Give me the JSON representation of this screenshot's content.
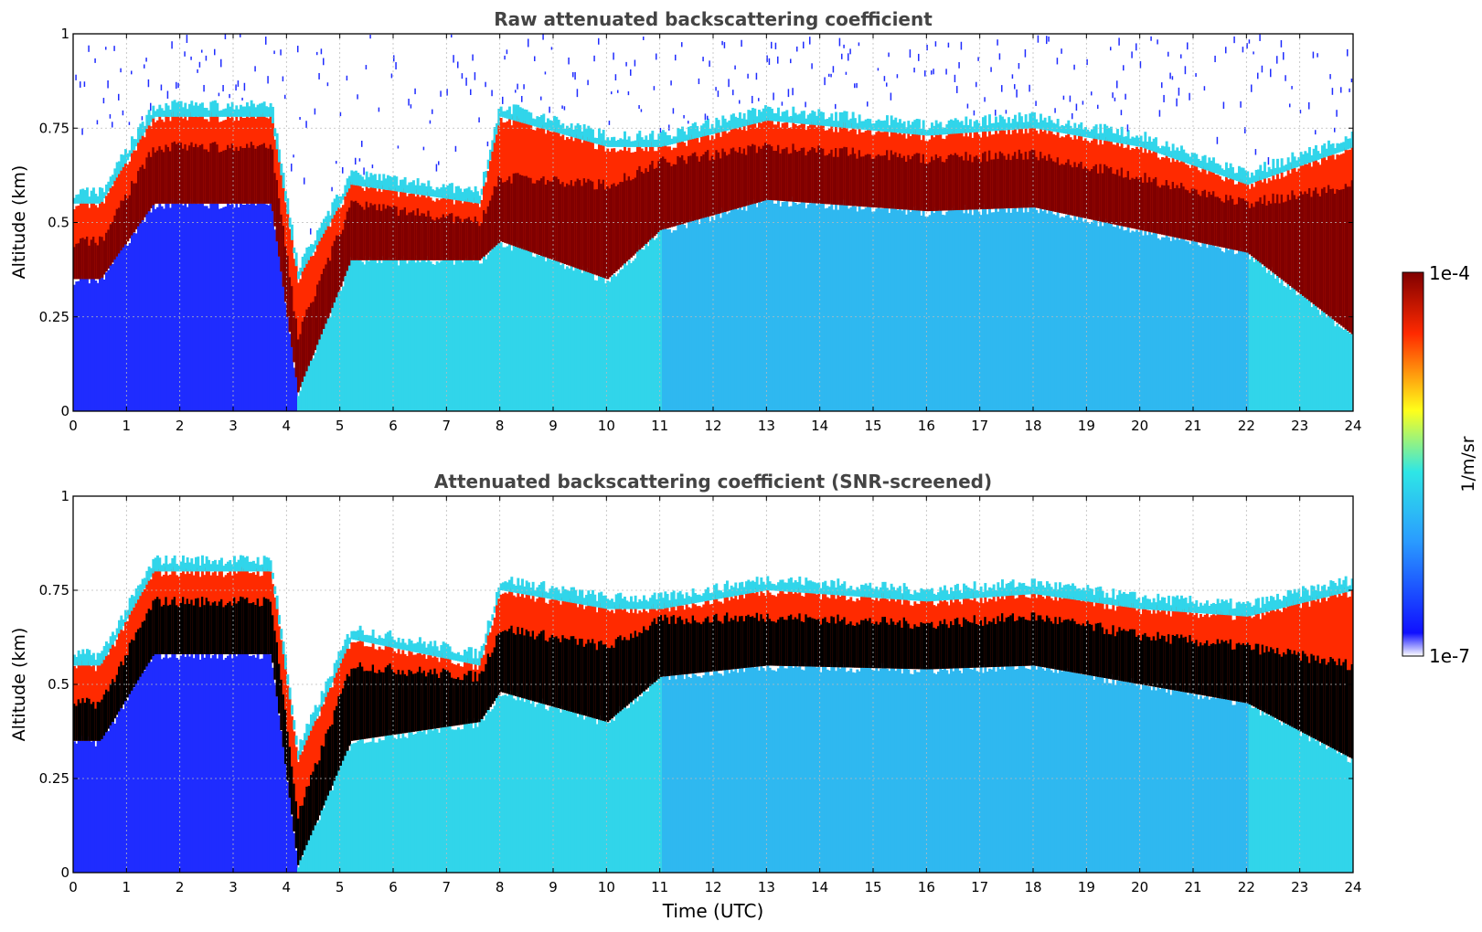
{
  "chart_data": [
    {
      "type": "heatmap",
      "title": "Raw attenuated backscattering coefficient",
      "xlabel": "",
      "ylabel": "Altitude (km)",
      "xlim": [
        0,
        24
      ],
      "ylim": [
        0,
        1
      ],
      "x_ticks": [
        "0",
        "1",
        "2",
        "3",
        "4",
        "5",
        "6",
        "7",
        "8",
        "9",
        "10",
        "11",
        "12",
        "13",
        "14",
        "15",
        "16",
        "17",
        "18",
        "19",
        "20",
        "21",
        "22",
        "23",
        "24"
      ],
      "y_ticks": [
        "0",
        "0.25",
        "0.5",
        "0.75",
        "1"
      ],
      "grid": true,
      "layer_top_km": [
        [
          0,
          0.55
        ],
        [
          0.5,
          0.55
        ],
        [
          1.5,
          0.78
        ],
        [
          3.7,
          0.78
        ],
        [
          4.2,
          0.35
        ],
        [
          5.2,
          0.6
        ],
        [
          7.6,
          0.55
        ],
        [
          8,
          0.78
        ],
        [
          10,
          0.7
        ],
        [
          11,
          0.7
        ],
        [
          13,
          0.77
        ],
        [
          16,
          0.73
        ],
        [
          18,
          0.75
        ],
        [
          20,
          0.7
        ],
        [
          22,
          0.6
        ],
        [
          24,
          0.7
        ]
      ],
      "core_base_km": [
        [
          0,
          0.35
        ],
        [
          0.5,
          0.35
        ],
        [
          1.5,
          0.55
        ],
        [
          3.7,
          0.55
        ],
        [
          4.2,
          0.05
        ],
        [
          5.2,
          0.4
        ],
        [
          7.6,
          0.4
        ],
        [
          8,
          0.45
        ],
        [
          10,
          0.35
        ],
        [
          11,
          0.48
        ],
        [
          13,
          0.56
        ],
        [
          16,
          0.53
        ],
        [
          18,
          0.54
        ],
        [
          20,
          0.48
        ],
        [
          22,
          0.42
        ],
        [
          24,
          0.2
        ]
      ],
      "core_top_km": [
        [
          0,
          0.45
        ],
        [
          0.5,
          0.45
        ],
        [
          1.5,
          0.7
        ],
        [
          3.7,
          0.7
        ],
        [
          4.2,
          0.2
        ],
        [
          5.2,
          0.55
        ],
        [
          7.6,
          0.5
        ],
        [
          8,
          0.62
        ],
        [
          10,
          0.6
        ],
        [
          11,
          0.66
        ],
        [
          13,
          0.7
        ],
        [
          16,
          0.67
        ],
        [
          18,
          0.68
        ],
        [
          20,
          0.62
        ],
        [
          22,
          0.55
        ],
        [
          24,
          0.6
        ]
      ]
    },
    {
      "type": "heatmap",
      "title": "Attenuated backscattering coefficient (SNR-screened)",
      "xlabel": "Time (UTC)",
      "ylabel": "Altitude (km)",
      "xlim": [
        0,
        24
      ],
      "ylim": [
        0,
        1
      ],
      "x_ticks": [
        "0",
        "1",
        "2",
        "3",
        "4",
        "5",
        "6",
        "7",
        "8",
        "9",
        "10",
        "11",
        "12",
        "13",
        "14",
        "15",
        "16",
        "17",
        "18",
        "19",
        "20",
        "21",
        "22",
        "23",
        "24"
      ],
      "y_ticks": [
        "0",
        "0.25",
        "0.5",
        "0.75",
        "1"
      ],
      "grid": true,
      "layer_top_km": [
        [
          0,
          0.55
        ],
        [
          0.5,
          0.55
        ],
        [
          1.5,
          0.8
        ],
        [
          3.7,
          0.8
        ],
        [
          4.2,
          0.3
        ],
        [
          5.2,
          0.62
        ],
        [
          7.6,
          0.55
        ],
        [
          8,
          0.75
        ],
        [
          10,
          0.7
        ],
        [
          11,
          0.7
        ],
        [
          13,
          0.75
        ],
        [
          16,
          0.72
        ],
        [
          18,
          0.74
        ],
        [
          20,
          0.7
        ],
        [
          22,
          0.68
        ],
        [
          24,
          0.75
        ]
      ],
      "core_base_km": [
        [
          0,
          0.35
        ],
        [
          0.5,
          0.35
        ],
        [
          1.5,
          0.58
        ],
        [
          3.7,
          0.58
        ],
        [
          4.2,
          0.02
        ],
        [
          5.2,
          0.35
        ],
        [
          7.6,
          0.4
        ],
        [
          8,
          0.48
        ],
        [
          10,
          0.4
        ],
        [
          11,
          0.52
        ],
        [
          13,
          0.55
        ],
        [
          16,
          0.54
        ],
        [
          18,
          0.55
        ],
        [
          20,
          0.5
        ],
        [
          22,
          0.45
        ],
        [
          24,
          0.3
        ]
      ],
      "core_top_km": [
        [
          0,
          0.45
        ],
        [
          0.5,
          0.45
        ],
        [
          1.5,
          0.72
        ],
        [
          3.7,
          0.72
        ],
        [
          4.2,
          0.15
        ],
        [
          5.2,
          0.55
        ],
        [
          7.6,
          0.52
        ],
        [
          8,
          0.65
        ],
        [
          10,
          0.6
        ],
        [
          11,
          0.67
        ],
        [
          13,
          0.68
        ],
        [
          16,
          0.66
        ],
        [
          18,
          0.68
        ],
        [
          20,
          0.63
        ],
        [
          22,
          0.6
        ],
        [
          24,
          0.55
        ]
      ]
    }
  ],
  "colorbar": {
    "label": "1/m/sr",
    "max_label": "1e-4",
    "min_label": "1e-7",
    "stops": [
      "#ffffff",
      "#1010ff",
      "#2a9cff",
      "#2ee6e6",
      "#ffff1a",
      "#ff2a00",
      "#800000"
    ]
  },
  "colors": {
    "background": "#ffffff",
    "low": "#1f2cff",
    "mid": "#31d5ea",
    "high": "#ff2a00",
    "max": "#800000",
    "saturated": "#000000",
    "grid": "#bbbbbb"
  }
}
